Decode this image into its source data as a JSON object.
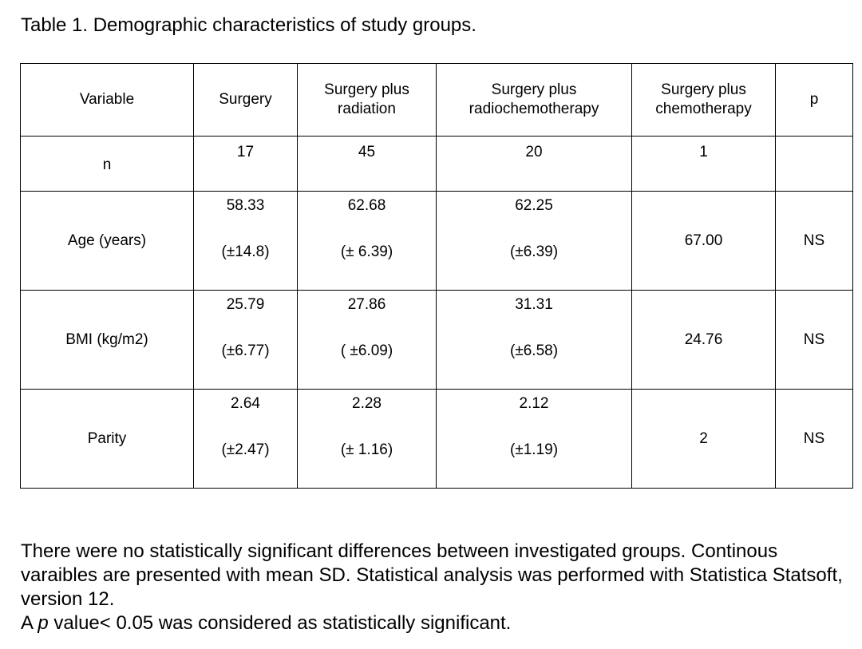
{
  "caption": "Table 1. Demographic characteristics of study groups.",
  "table": {
    "headers": [
      "Variable",
      "Surgery",
      "Surgery plus radiation",
      "Surgery plus radiochemotherapy",
      "Surgery plus chemotherapy",
      "p"
    ],
    "header_lines": {
      "radiation": [
        "Surgery plus",
        "radiation"
      ],
      "radiochemo": [
        "Surgery plus",
        "radiochemotherapy"
      ],
      "chemo": [
        "Surgery plus",
        "chemotherapy"
      ]
    },
    "rows": [
      {
        "variable": "n",
        "surgery": "17",
        "radiation": "45",
        "radiochemo": "20",
        "chemo": "1",
        "p": ""
      },
      {
        "variable": "Age (years)",
        "surgery": {
          "mean": "58.33",
          "sd": "(±14.8)"
        },
        "radiation": {
          "mean": "62.68",
          "sd": "(± 6.39)"
        },
        "radiochemo": {
          "mean": "62.25",
          "sd": "(±6.39)"
        },
        "chemo": "67.00",
        "p": "NS"
      },
      {
        "variable": "BMI (kg/m2)",
        "surgery": {
          "mean": "25.79",
          "sd": "(±6.77)"
        },
        "radiation": {
          "mean": "27.86",
          "sd": "( ±6.09)"
        },
        "radiochemo": {
          "mean": "31.31",
          "sd": "(±6.58)"
        },
        "chemo": "24.76",
        "p": "NS"
      },
      {
        "variable": "Parity",
        "surgery": {
          "mean": "2.64",
          "sd": "(±2.47)"
        },
        "radiation": {
          "mean": "2.28",
          "sd": "(± 1.16)"
        },
        "radiochemo": {
          "mean": "2.12",
          "sd": "(±1.19)"
        },
        "chemo": "2",
        "p": "NS"
      }
    ]
  },
  "footnote": {
    "line1": "There were no statistically significant differences between investigated groups. Continous varaibles are presented with mean SD. Statistical analysis was performed with Statistica Statsoft, version 12.",
    "line2_prefix": "A ",
    "line2_italic": "p",
    "line2_suffix": " value< 0.05 was considered as statistically significant."
  }
}
